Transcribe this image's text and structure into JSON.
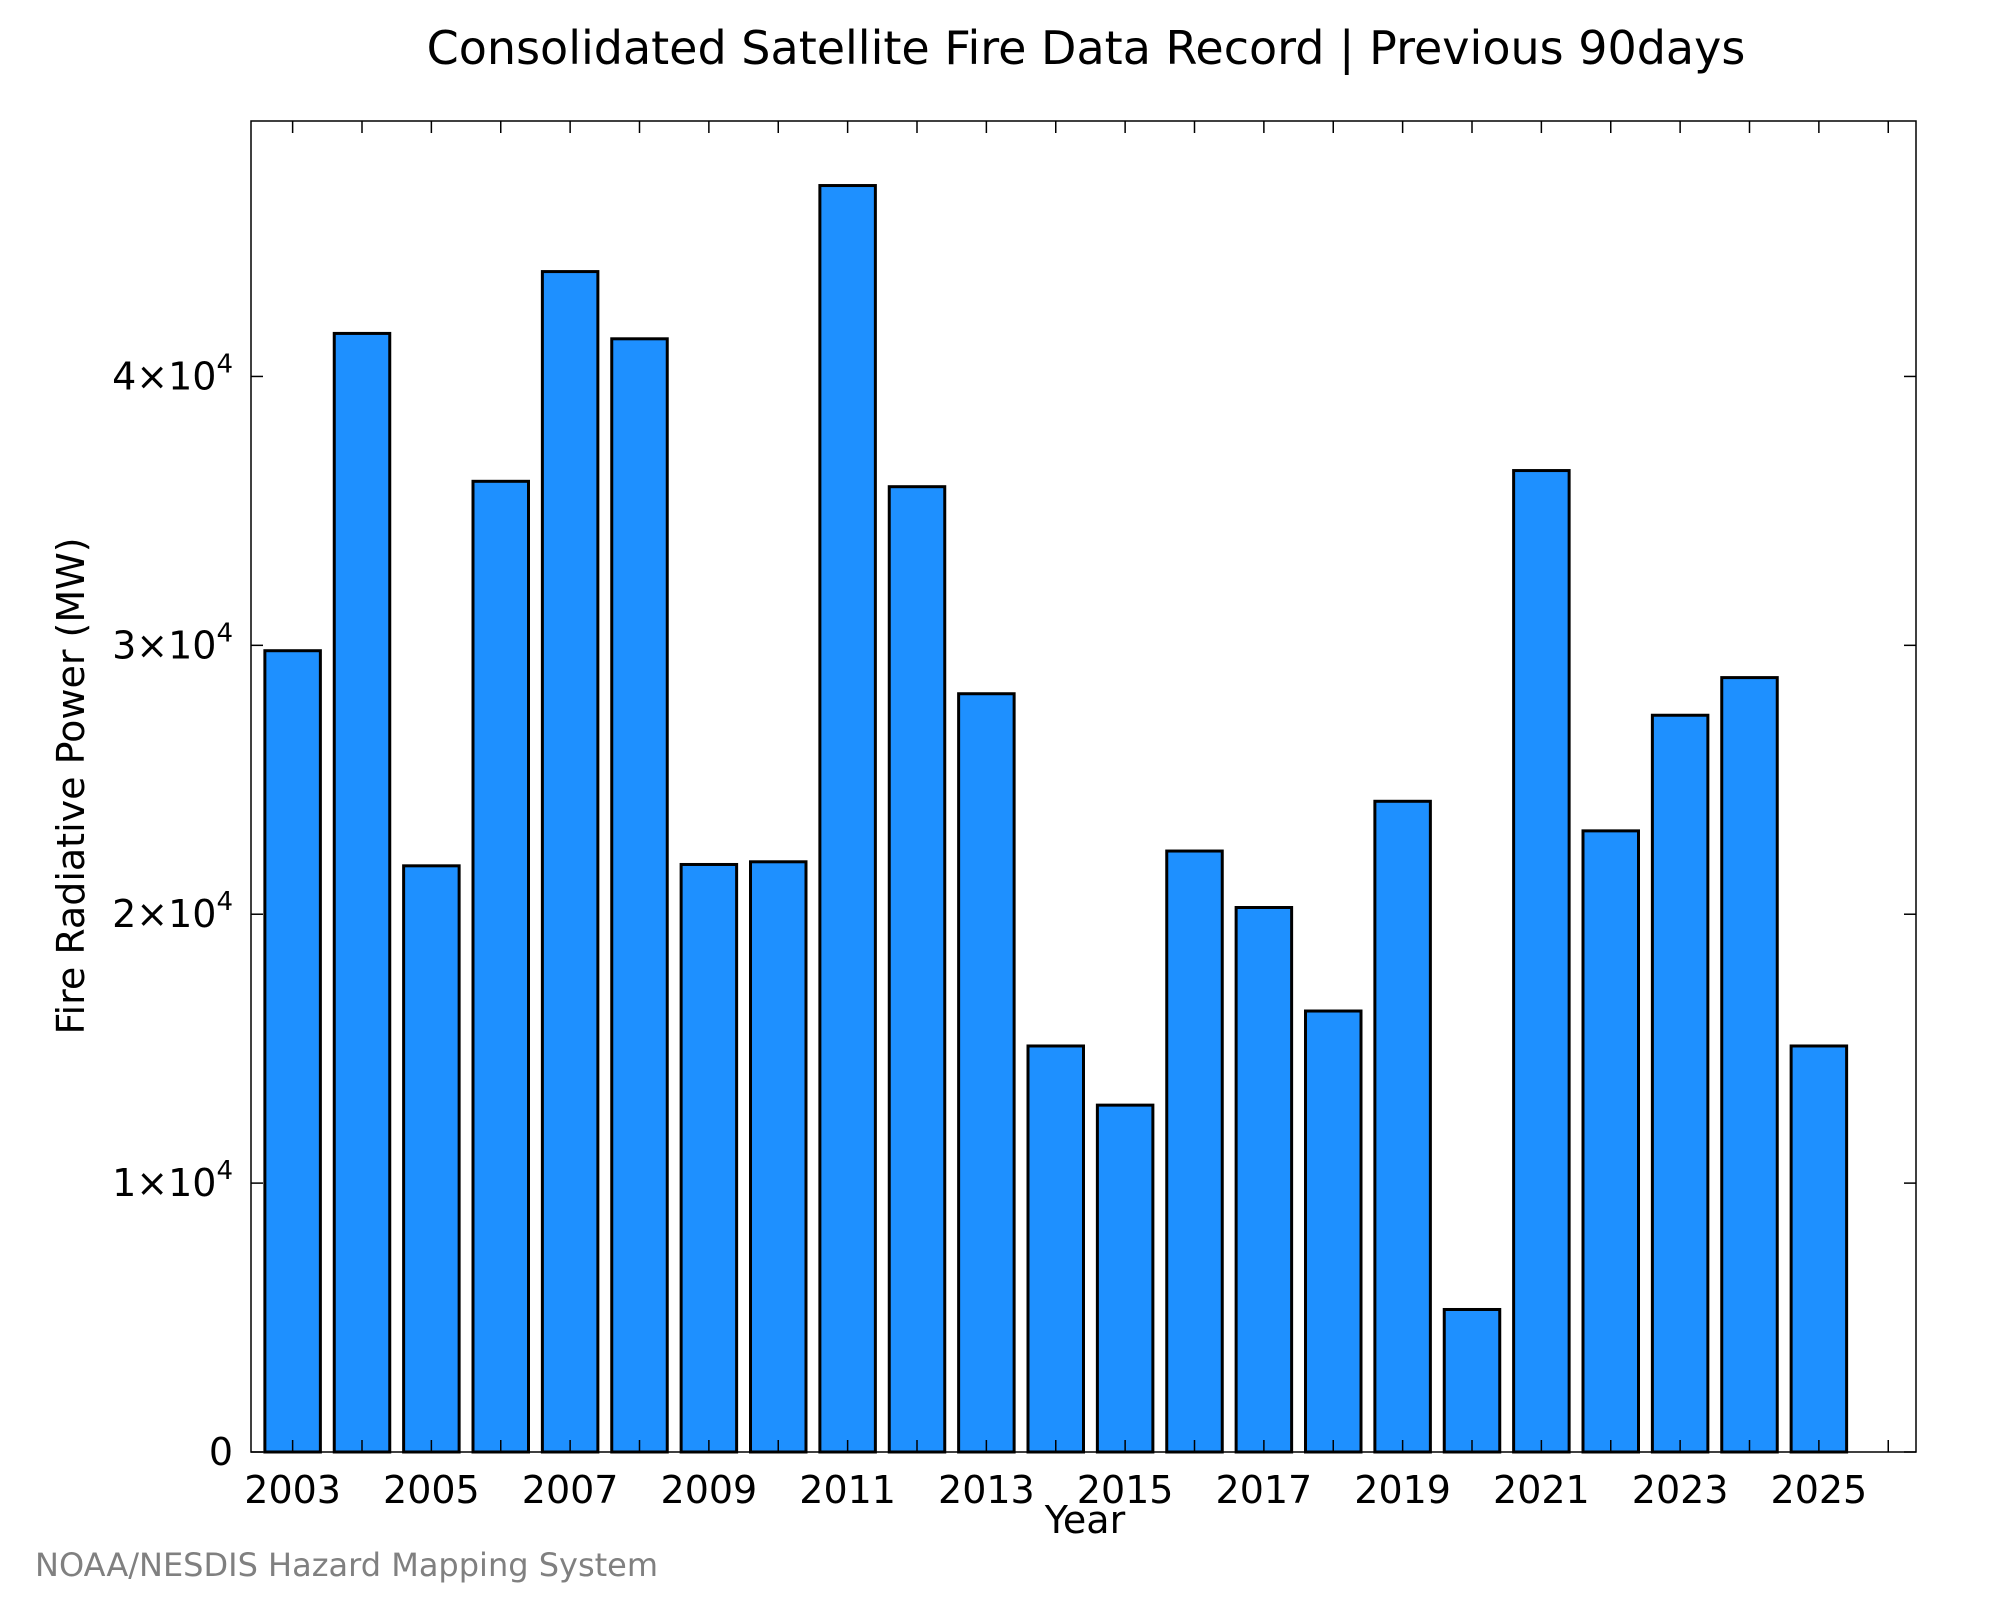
{
  "chart_data": {
    "type": "bar",
    "title": "Consolidated Satellite Fire Data Record | Previous 90days",
    "xlabel": "Year",
    "ylabel": "Fire Radiative Power (MW)",
    "credit": "NOAA/NESDIS Hazard Mapping System",
    "bar_color": "#1e90ff",
    "ylim": [
      0,
      49500
    ],
    "xlim": [
      2002.4,
      2026.4
    ],
    "yticks": [
      {
        "value": 0,
        "mantissa": "0",
        "exponent": ""
      },
      {
        "value": 10000,
        "mantissa": "1×10",
        "exponent": "4"
      },
      {
        "value": 20000,
        "mantissa": "2×10",
        "exponent": "4"
      },
      {
        "value": 30000,
        "mantissa": "3×10",
        "exponent": "4"
      },
      {
        "value": 40000,
        "mantissa": "4×10",
        "exponent": "4"
      }
    ],
    "xticks": [
      2003,
      2005,
      2007,
      2009,
      2011,
      2013,
      2015,
      2017,
      2019,
      2021,
      2023,
      2025
    ],
    "categories": [
      2003,
      2004,
      2005,
      2006,
      2007,
      2008,
      2009,
      2010,
      2011,
      2012,
      2013,
      2014,
      2015,
      2016,
      2017,
      2018,
      2019,
      2020,
      2021,
      2022,
      2023,
      2024,
      2025
    ],
    "values": [
      29800,
      41600,
      21800,
      36100,
      43900,
      41400,
      21850,
      21950,
      47100,
      35900,
      28200,
      15100,
      12900,
      22350,
      20250,
      16400,
      24200,
      5300,
      36500,
      23100,
      27400,
      28800,
      15100
    ],
    "grid": false
  }
}
